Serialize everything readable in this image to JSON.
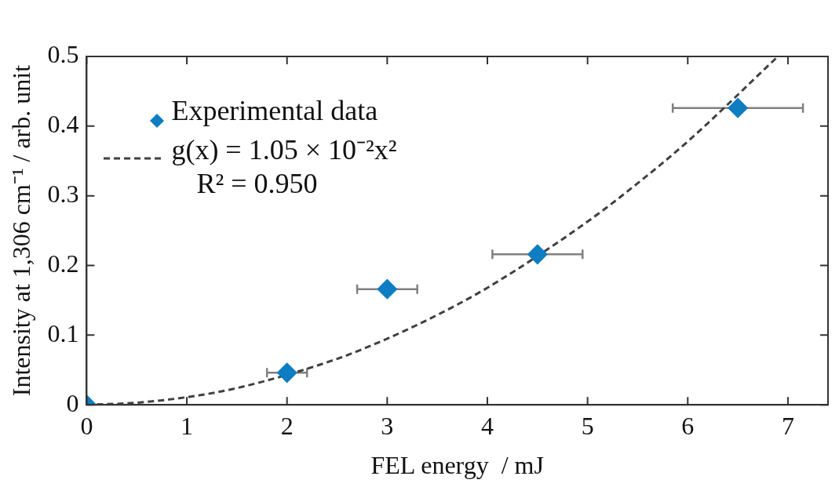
{
  "chart_data": {
    "type": "scatter",
    "xlabel": "FEL energy  / mJ",
    "ylabel": "Intensity at 1,306 cm⁻¹ / arb. unit",
    "xlim": [
      0,
      7.4
    ],
    "xticks": [
      0,
      1,
      2,
      3,
      4,
      5,
      6,
      7
    ],
    "ylim": [
      0,
      0.5
    ],
    "yticks": [
      0,
      0.1,
      0.2,
      0.3,
      0.4,
      0.5
    ],
    "grid": false,
    "legend": "top left",
    "series": [
      {
        "name": "Experimental data",
        "type": "scatter",
        "color": "#0e7dc2",
        "marker": "diamond",
        "x": [
          0,
          2,
          3,
          4.5,
          6.5
        ],
        "values": [
          0,
          0.046,
          0.166,
          0.216,
          0.426
        ],
        "xerrors": [
          null,
          0.2,
          0.3,
          0.45,
          0.65
        ]
      },
      {
        "name": "g(x) = 1.05 × 10⁻²x²",
        "type": "line",
        "color": "#404040",
        "marker": "none",
        "line_style": "dashed",
        "x": [
          0,
          0.5,
          1,
          1.5,
          2.5,
          3,
          3.5,
          4,
          5,
          5.5,
          6,
          6.9
        ],
        "values": [
          0,
          0.003,
          0.011,
          0.024,
          0.066,
          0.095,
          0.129,
          0.168,
          0.263,
          0.318,
          0.378,
          0.5
        ]
      }
    ],
    "annotations": [
      "R² = 0.950"
    ]
  }
}
